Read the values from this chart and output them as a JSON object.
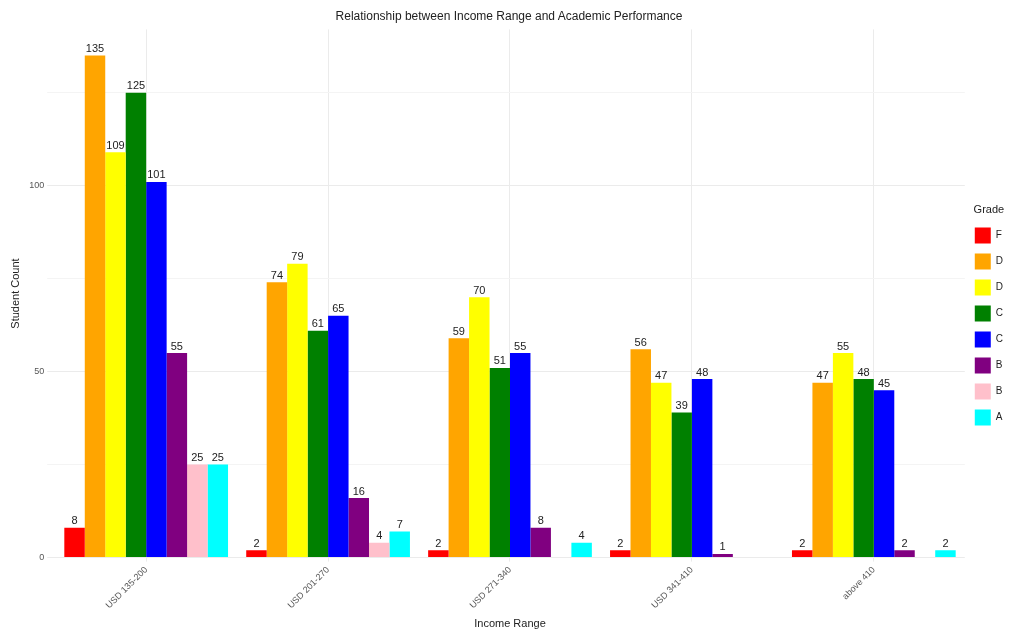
{
  "chart_data": {
    "type": "bar",
    "title": "Relationship between Income Range and Academic Performance",
    "xlabel": "Income Range",
    "ylabel": "Student Count",
    "legend_title": "Grade",
    "legend": "right",
    "grid": true,
    "data_labels": true,
    "categories": [
      "USD 135-200",
      "USD 201-270",
      "USD 271-340",
      "USD 341-410",
      "above 410"
    ],
    "ylim": [
      0,
      142
    ],
    "yticks": [
      0,
      {
        "value": 25,
        "label": null
      },
      50,
      {
        "value": 75,
        "label": null
      },
      100,
      {
        "value": 125,
        "label": null
      }
    ],
    "series": [
      {
        "name": "F",
        "color": "#ff0000",
        "values": [
          8,
          2,
          2,
          2,
          2
        ]
      },
      {
        "name": "D",
        "color": "#ffa500",
        "values": [
          135,
          74,
          59,
          56,
          47
        ]
      },
      {
        "name": "D",
        "color": "#ffff00",
        "values": [
          109,
          79,
          70,
          47,
          55
        ]
      },
      {
        "name": "C",
        "color": "#008000",
        "values": [
          125,
          61,
          51,
          39,
          48
        ]
      },
      {
        "name": "C",
        "color": "#0000ff",
        "values": [
          101,
          65,
          55,
          48,
          45
        ]
      },
      {
        "name": "B",
        "color": "#800080",
        "values": [
          55,
          16,
          8,
          1,
          2
        ]
      },
      {
        "name": "B",
        "color": "#ffc0cb",
        "values": [
          25,
          4,
          null,
          null,
          null
        ]
      },
      {
        "name": "A",
        "color": "#00ffff",
        "values": [
          25,
          7,
          4,
          null,
          2
        ]
      }
    ]
  }
}
